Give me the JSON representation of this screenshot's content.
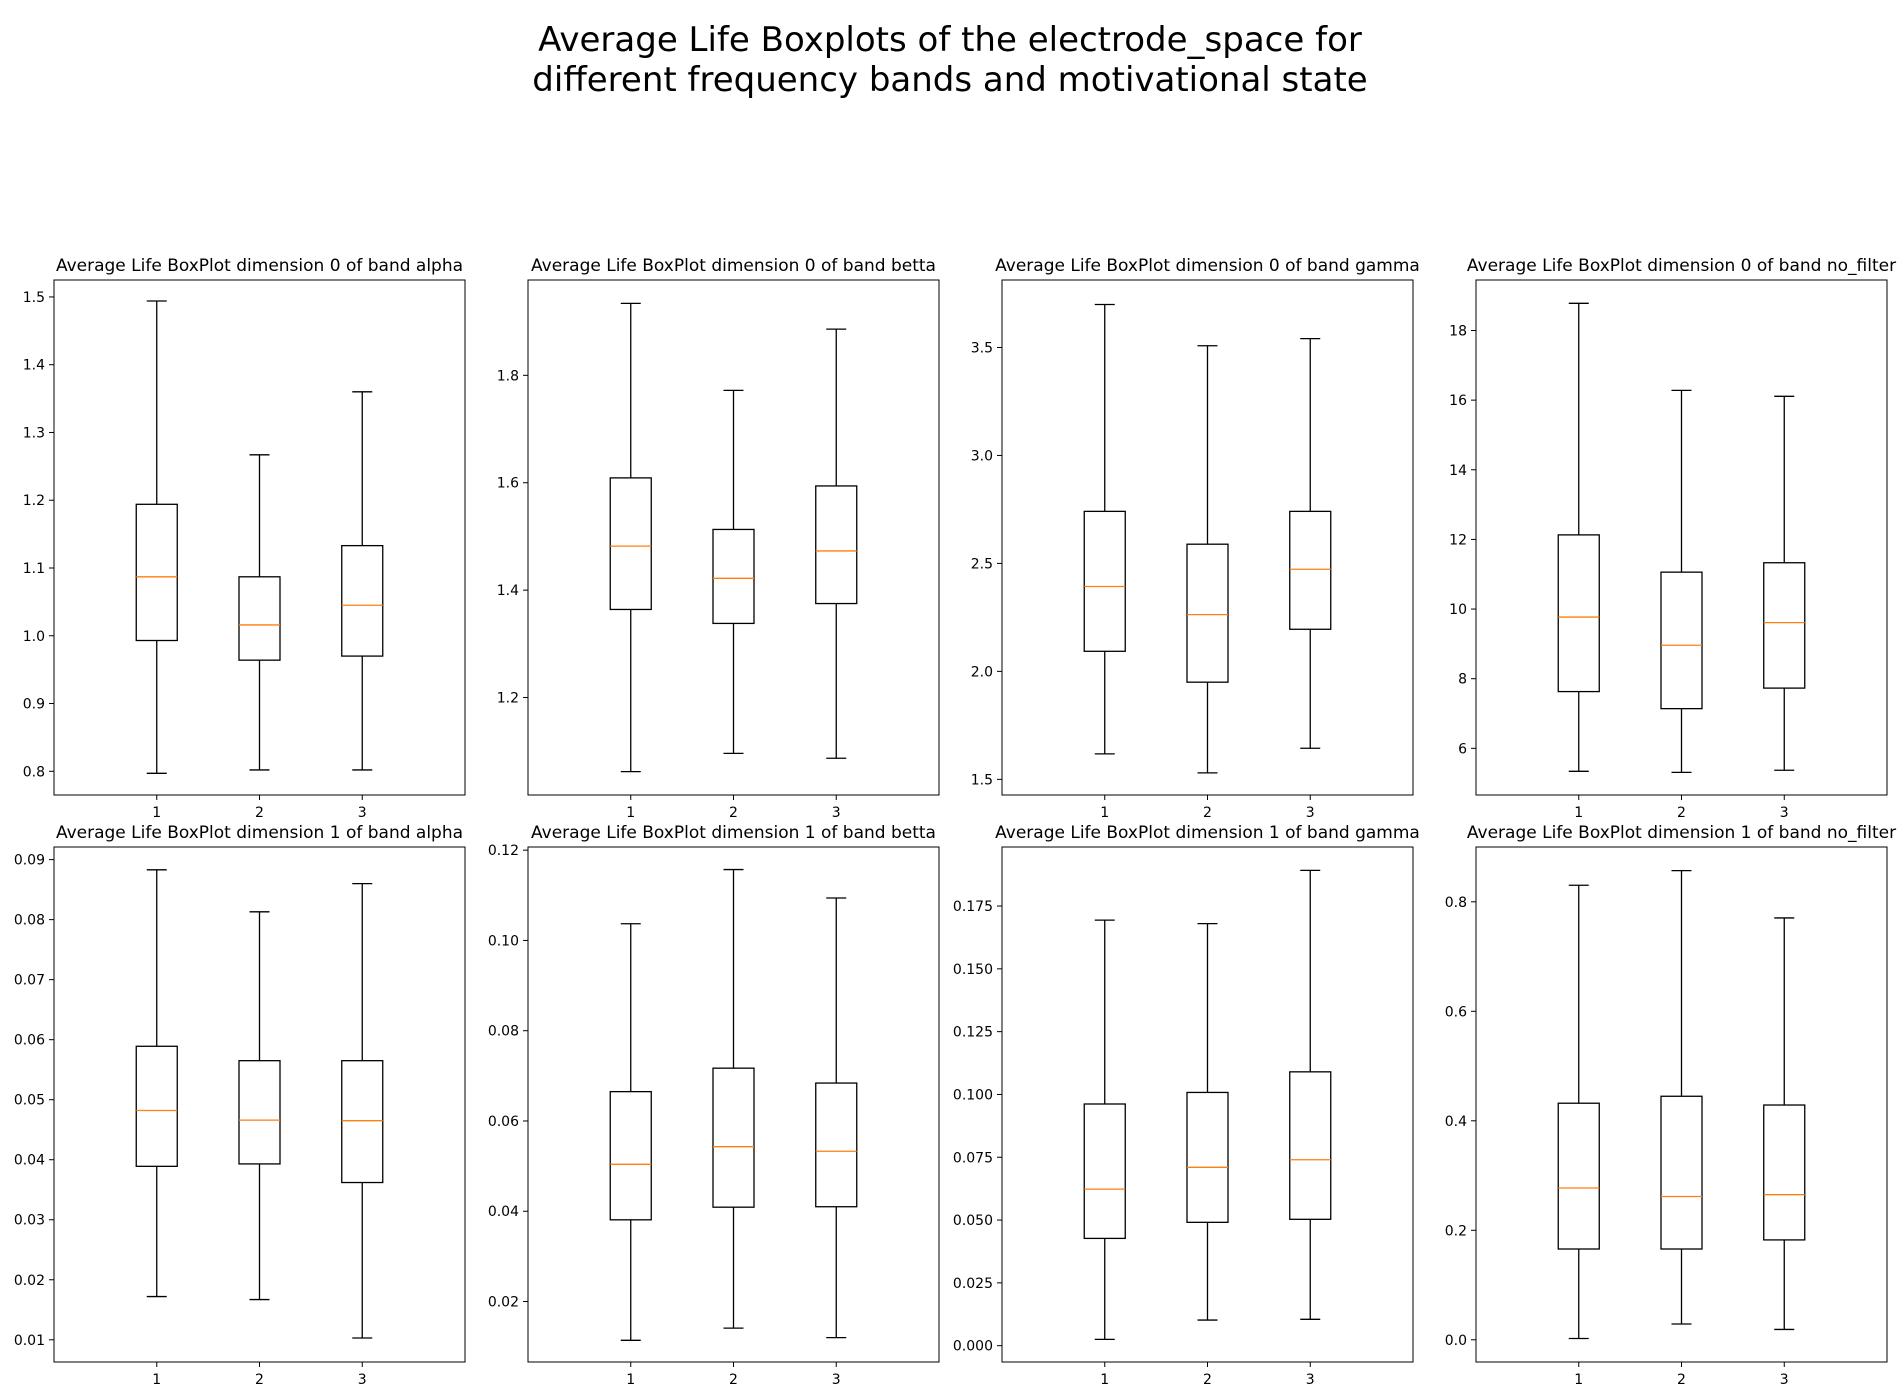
{
  "suptitle": {
    "line1": "Average Life Boxplots of the electrode_space for",
    "line2": "different frequency bands and motivational state"
  },
  "colors": {
    "box": "#000000",
    "median": "#ff7f0e",
    "background": "#ffffff"
  },
  "chart_data": [
    {
      "type": "boxplot",
      "title": "Average Life BoxPlot dimension 0 of band alpha",
      "categories": [
        "1",
        "2",
        "3"
      ],
      "ylim": [
        0.765,
        1.525
      ],
      "yticks": [
        0.8,
        0.9,
        1.0,
        1.1,
        1.2,
        1.3,
        1.4,
        1.5
      ],
      "ytick_labels": [
        "0.8",
        "0.9",
        "1.0",
        "1.1",
        "1.2",
        "1.3",
        "1.4",
        "1.5"
      ],
      "boxes": [
        {
          "whislo": 0.797,
          "q1": 0.993,
          "med": 1.087,
          "q3": 1.194,
          "whishi": 1.494
        },
        {
          "whislo": 0.802,
          "q1": 0.964,
          "med": 1.016,
          "q3": 1.087,
          "whishi": 1.267
        },
        {
          "whislo": 0.802,
          "q1": 0.97,
          "med": 1.045,
          "q3": 1.133,
          "whishi": 1.36
        }
      ]
    },
    {
      "type": "boxplot",
      "title": "Average Life BoxPlot dimension 0 of band betta",
      "categories": [
        "1",
        "2",
        "3"
      ],
      "ylim": [
        1.0185,
        1.9775
      ],
      "yticks": [
        1.2,
        1.4,
        1.6,
        1.8
      ],
      "ytick_labels": [
        "1.2",
        "1.4",
        "1.6",
        "1.8"
      ],
      "boxes": [
        {
          "whislo": 1.062,
          "q1": 1.364,
          "med": 1.482,
          "q3": 1.609,
          "whishi": 1.934
        },
        {
          "whislo": 1.096,
          "q1": 1.338,
          "med": 1.422,
          "q3": 1.513,
          "whishi": 1.772
        },
        {
          "whislo": 1.087,
          "q1": 1.375,
          "med": 1.473,
          "q3": 1.594,
          "whishi": 1.886
        }
      ]
    },
    {
      "type": "boxplot",
      "title": "Average Life BoxPlot dimension 0 of band gamma",
      "categories": [
        "1",
        "2",
        "3"
      ],
      "ylim": [
        1.4275,
        3.8125
      ],
      "yticks": [
        1.5,
        2.0,
        2.5,
        3.0,
        3.5
      ],
      "ytick_labels": [
        "1.5",
        "2.0",
        "2.5",
        "3.0",
        "3.5"
      ],
      "boxes": [
        {
          "whislo": 1.618,
          "q1": 2.093,
          "med": 2.393,
          "q3": 2.741,
          "whishi": 3.699
        },
        {
          "whislo": 1.53,
          "q1": 1.95,
          "med": 2.263,
          "q3": 2.589,
          "whishi": 3.508
        },
        {
          "whislo": 1.644,
          "q1": 2.195,
          "med": 2.473,
          "q3": 2.741,
          "whishi": 3.541
        }
      ]
    },
    {
      "type": "boxplot",
      "title": "Average Life BoxPlot dimension 0 of band no_filter",
      "categories": [
        "1",
        "2",
        "3"
      ],
      "ylim": [
        4.66,
        19.45
      ],
      "yticks": [
        6,
        8,
        10,
        12,
        14,
        16,
        18
      ],
      "ytick_labels": [
        "6",
        "8",
        "10",
        "12",
        "14",
        "16",
        "18"
      ],
      "boxes": [
        {
          "whislo": 5.34,
          "q1": 7.63,
          "med": 9.77,
          "q3": 12.13,
          "whishi": 18.78
        },
        {
          "whislo": 5.31,
          "q1": 7.14,
          "med": 8.96,
          "q3": 11.06,
          "whishi": 16.28
        },
        {
          "whislo": 5.37,
          "q1": 7.73,
          "med": 9.61,
          "q3": 11.33,
          "whishi": 16.11
        }
      ]
    },
    {
      "type": "boxplot",
      "title": "Average Life BoxPlot dimension 1 of band alpha",
      "categories": [
        "1",
        "2",
        "3"
      ],
      "ylim": [
        0.0063,
        0.0921
      ],
      "yticks": [
        0.01,
        0.02,
        0.03,
        0.04,
        0.05,
        0.06,
        0.07,
        0.08,
        0.09
      ],
      "ytick_labels": [
        "0.01",
        "0.02",
        "0.03",
        "0.04",
        "0.05",
        "0.06",
        "0.07",
        "0.08",
        "0.09"
      ],
      "boxes": [
        {
          "whislo": 0.0172,
          "q1": 0.0389,
          "med": 0.0482,
          "q3": 0.0589,
          "whishi": 0.0883
        },
        {
          "whislo": 0.0167,
          "q1": 0.0393,
          "med": 0.0466,
          "q3": 0.0565,
          "whishi": 0.0813
        },
        {
          "whislo": 0.0103,
          "q1": 0.0362,
          "med": 0.0465,
          "q3": 0.0565,
          "whishi": 0.086
        }
      ]
    },
    {
      "type": "boxplot",
      "title": "Average Life BoxPlot dimension 1 of band betta",
      "categories": [
        "1",
        "2",
        "3"
      ],
      "ylim": [
        0.0066,
        0.1207
      ],
      "yticks": [
        0.02,
        0.04,
        0.06,
        0.08,
        0.1,
        0.12
      ],
      "ytick_labels": [
        "0.02",
        "0.04",
        "0.06",
        "0.08",
        "0.10",
        "0.12"
      ],
      "boxes": [
        {
          "whislo": 0.0114,
          "q1": 0.0381,
          "med": 0.0504,
          "q3": 0.0665,
          "whishi": 0.1037
        },
        {
          "whislo": 0.0141,
          "q1": 0.0409,
          "med": 0.0543,
          "q3": 0.0717,
          "whishi": 0.1157
        },
        {
          "whislo": 0.012,
          "q1": 0.041,
          "med": 0.0533,
          "q3": 0.0684,
          "whishi": 0.1094
        }
      ]
    },
    {
      "type": "boxplot",
      "title": "Average Life BoxPlot dimension 1 of band gamma",
      "categories": [
        "1",
        "2",
        "3"
      ],
      "ylim": [
        -0.0065,
        0.1985
      ],
      "yticks": [
        0.0,
        0.025,
        0.05,
        0.075,
        0.1,
        0.125,
        0.15,
        0.175
      ],
      "ytick_labels": [
        "0.000",
        "0.025",
        "0.050",
        "0.075",
        "0.100",
        "0.125",
        "0.150",
        "0.175"
      ],
      "boxes": [
        {
          "whislo": 0.0025,
          "q1": 0.0427,
          "med": 0.0623,
          "q3": 0.0962,
          "whishi": 0.1694
        },
        {
          "whislo": 0.0102,
          "q1": 0.0491,
          "med": 0.071,
          "q3": 0.1008,
          "whishi": 0.168
        },
        {
          "whislo": 0.0105,
          "q1": 0.0503,
          "med": 0.074,
          "q3": 0.109,
          "whishi": 0.1892
        }
      ]
    },
    {
      "type": "boxplot",
      "title": "Average Life BoxPlot dimension 1 of band no_filter",
      "categories": [
        "1",
        "2",
        "3"
      ],
      "ylim": [
        -0.0406,
        0.9001
      ],
      "yticks": [
        0.0,
        0.2,
        0.4,
        0.6,
        0.8
      ],
      "ytick_labels": [
        "0.0",
        "0.2",
        "0.4",
        "0.6",
        "0.8"
      ],
      "boxes": [
        {
          "whislo": 0.0023,
          "q1": 0.1658,
          "med": 0.2772,
          "q3": 0.4321,
          "whishi": 0.8302
        },
        {
          "whislo": 0.0288,
          "q1": 0.1658,
          "med": 0.2617,
          "q3": 0.4448,
          "whishi": 0.857
        },
        {
          "whislo": 0.0189,
          "q1": 0.1824,
          "med": 0.265,
          "q3": 0.4288,
          "whishi": 0.7705
        }
      ]
    }
  ]
}
